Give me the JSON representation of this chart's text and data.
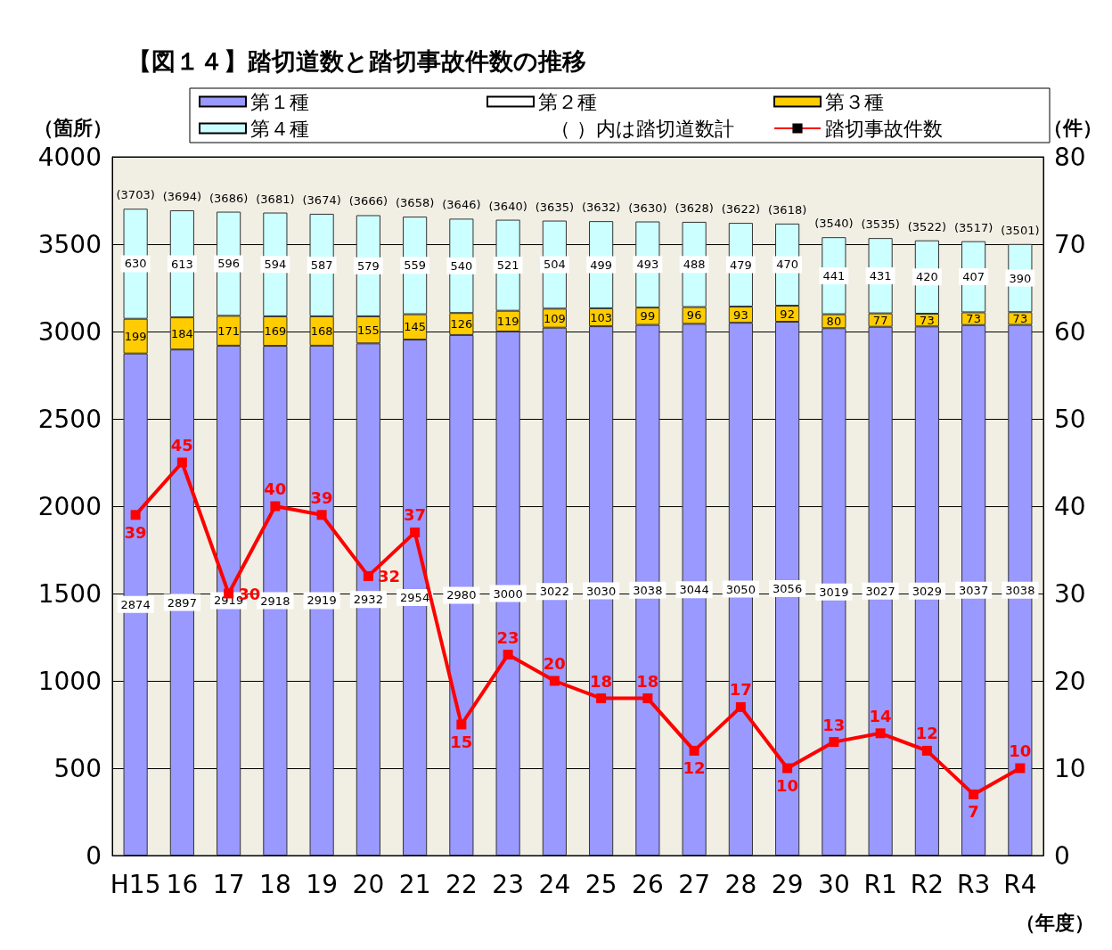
{
  "chart_data": {
    "type": "bar",
    "title": "【図１４】踏切道数と踏切事故件数の推移",
    "xlabel": "（年度）",
    "ylabel": "（箇所）",
    "y2label": "（件）",
    "categories": [
      "H15",
      "16",
      "17",
      "18",
      "19",
      "20",
      "21",
      "22",
      "23",
      "24",
      "25",
      "26",
      "27",
      "28",
      "29",
      "30",
      "R1",
      "R2",
      "R3",
      "R4"
    ],
    "stacked": true,
    "data_labels": true,
    "grid": "y",
    "legend": "top",
    "annotations": [
      "（ ）内は踏切道数計"
    ],
    "totals": [
      "(3703)",
      "(3694)",
      "(3686)",
      "(3681)",
      "(3674)",
      "(3666)",
      "(3658)",
      "(3646)",
      "(3640)",
      "(3635)",
      "(3632)",
      "(3630)",
      "(3628)",
      "(3622)",
      "(3618)",
      "(3540)",
      "(3535)",
      "(3522)",
      "(3517)",
      "(3501)"
    ],
    "ylim": [
      0,
      4000
    ],
    "yticks": [
      0,
      500,
      1000,
      1500,
      2000,
      2500,
      3000,
      3500,
      4000
    ],
    "y2lim": [
      0,
      80
    ],
    "y2ticks": [
      0,
      10,
      20,
      30,
      40,
      50,
      60,
      70,
      80
    ],
    "series": [
      {
        "name": "第１種",
        "color": "#9999ff",
        "values": [
          2874,
          2897,
          2919,
          2918,
          2919,
          2932,
          2954,
          2980,
          3000,
          3022,
          3030,
          3038,
          3044,
          3050,
          3056,
          3019,
          3027,
          3029,
          3037,
          3038
        ]
      },
      {
        "name": "第２種",
        "color": "#ffffff",
        "values": [
          0,
          0,
          0,
          0,
          0,
          0,
          0,
          0,
          0,
          0,
          0,
          0,
          0,
          0,
          0,
          0,
          0,
          0,
          0,
          0
        ],
        "value_labels": [
          null,
          null,
          null,
          null,
          null,
          null,
          null,
          null,
          null,
          null,
          null,
          null,
          null,
          null,
          null,
          null,
          null,
          null,
          null,
          null
        ]
      },
      {
        "name": "第３種",
        "color": "#ffcc00",
        "values": [
          199,
          184,
          171,
          169,
          168,
          155,
          145,
          126,
          119,
          109,
          103,
          99,
          96,
          93,
          92,
          80,
          77,
          73,
          73,
          73
        ]
      },
      {
        "name": "第４種",
        "color": "#ccffff",
        "values": [
          630,
          613,
          596,
          594,
          587,
          579,
          559,
          540,
          521,
          504,
          499,
          493,
          488,
          479,
          470,
          441,
          431,
          420,
          407,
          390
        ]
      },
      {
        "name": "踏切事故件数",
        "type": "line",
        "axis": "y2",
        "color": "#ff0000",
        "marker": "square",
        "values": [
          39,
          45,
          30,
          40,
          39,
          32,
          37,
          15,
          23,
          20,
          18,
          18,
          12,
          17,
          10,
          13,
          14,
          12,
          7,
          10
        ]
      }
    ]
  }
}
